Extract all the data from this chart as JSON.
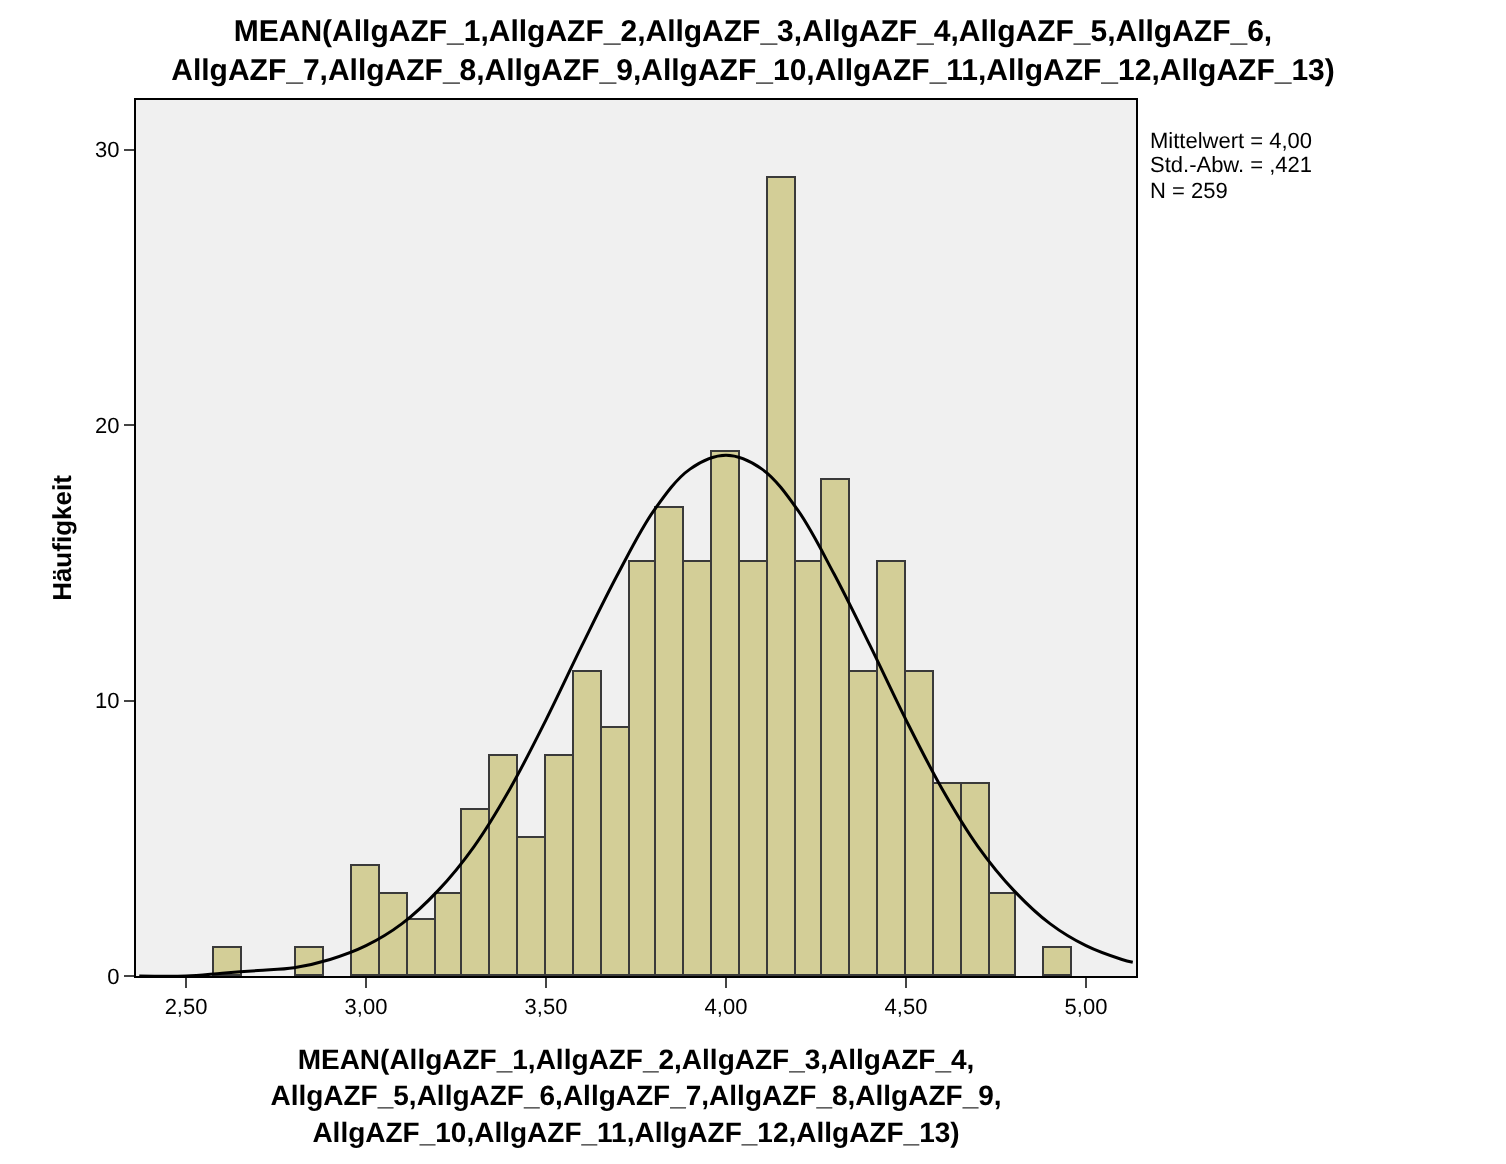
{
  "chart_data": {
    "type": "histogram",
    "title": "MEAN(AllgAZF_1,AllgAZF_2,AllgAZF_3,AllgAZF_4,AllgAZF_5,AllgAZF_6,\nAllgAZF_7,AllgAZF_8,AllgAZF_9,AllgAZF_10,AllgAZF_11,AllgAZF_12,AllgAZF_13)",
    "xlabel": "MEAN(AllgAZF_1,AllgAZF_2,AllgAZF_3,AllgAZF_4,\nAllgAZF_5,AllgAZF_6,AllgAZF_7,AllgAZF_8,AllgAZF_9,\nAllgAZF_10,AllgAZF_11,AllgAZF_12,AllgAZF_13)",
    "ylabel": "Häufigkeit",
    "annotations": [
      "Mittelwert = 4,00",
      "Std.-Abw. = ,421",
      "N = 259"
    ],
    "bins": [
      2.5769,
      2.6538,
      2.7308,
      2.8077,
      2.8846,
      2.9615,
      3.0385,
      3.1154,
      3.1923,
      3.2692,
      3.3462,
      3.4231,
      3.5,
      3.5769,
      3.6538,
      3.7308,
      3.8077,
      3.8846,
      3.9615,
      4.0385,
      4.1154,
      4.1923,
      4.2692,
      4.3462,
      4.4231,
      4.5,
      4.5769,
      4.6538,
      4.7308,
      4.8077,
      4.8846,
      4.9615
    ],
    "series": [
      {
        "color": "#d3ce97",
        "values": [
          1,
          0,
          0,
          1,
          0,
          4,
          3,
          2,
          3,
          6,
          8,
          5,
          8,
          11,
          9,
          15,
          17,
          15,
          19,
          15,
          29,
          15,
          18,
          11,
          15,
          11,
          7,
          7,
          3,
          0,
          1
        ]
      },
      {
        "type": "line",
        "color": "#000000",
        "x": [
          2.37,
          2.5,
          2.6,
          2.7,
          2.8,
          2.9,
          3.0,
          3.1,
          3.2,
          3.3,
          3.4,
          3.5,
          3.6,
          3.7,
          3.8,
          3.9,
          4.0,
          4.1,
          4.2,
          4.3,
          4.4,
          4.5,
          4.6,
          4.7,
          4.8,
          4.9,
          5.0,
          5.1,
          5.13
        ],
        "values": [
          0.0,
          0.0,
          0.1,
          0.2,
          0.3,
          0.6,
          1.1,
          1.9,
          3.1,
          4.7,
          6.8,
          9.3,
          12.0,
          14.6,
          16.9,
          18.4,
          18.9,
          18.4,
          16.9,
          14.6,
          12.0,
          9.3,
          6.8,
          4.7,
          3.1,
          1.9,
          1.1,
          0.6,
          0.5
        ]
      }
    ],
    "xlim": [
      2.361,
      5.139
    ],
    "xticks": [
      {
        "value": 2.5,
        "label": "2,50"
      },
      {
        "value": 3.0,
        "label": "3,00"
      },
      {
        "value": 3.5,
        "label": "3,50"
      },
      {
        "value": 4.0,
        "label": "4,00"
      },
      {
        "value": 4.5,
        "label": "4,50"
      },
      {
        "value": 5.0,
        "label": "5,00"
      }
    ],
    "ylim": [
      0,
      31.8
    ],
    "yticks": [
      0,
      10,
      20,
      30
    ],
    "grid": false,
    "marker": "none"
  }
}
